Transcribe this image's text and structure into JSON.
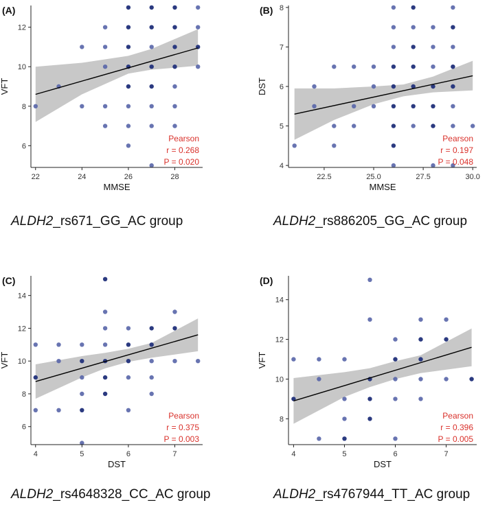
{
  "chart_data": [
    {
      "type": "scatter",
      "panel_label": "(A)",
      "xlabel": "MMSE",
      "ylabel": "VFT",
      "xlim": [
        21.8,
        29.2
      ],
      "ylim": [
        4.9,
        13.1
      ],
      "xticks": [
        22,
        24,
        26,
        28
      ],
      "yticks": [
        6,
        8,
        10,
        12
      ],
      "gene": "ALDH2",
      "group": "_rs671_GG_AC group",
      "stats": {
        "method": "Pearson",
        "r": "r = 0.268",
        "p": "P = 0.020"
      },
      "fit": {
        "x": [
          22,
          29
        ],
        "y": [
          8.6,
          10.95
        ]
      },
      "band": {
        "x": [
          22,
          24,
          26,
          27,
          28,
          29
        ],
        "lower": [
          7.2,
          8.6,
          9.65,
          9.85,
          9.95,
          10.05
        ],
        "upper": [
          10.0,
          10.2,
          10.55,
          10.9,
          11.4,
          11.9
        ]
      },
      "points": [
        [
          22,
          8
        ],
        [
          23,
          9
        ],
        [
          24,
          11
        ],
        [
          24,
          8
        ],
        [
          25,
          12
        ],
        [
          25,
          11
        ],
        [
          25,
          10
        ],
        [
          25,
          8
        ],
        [
          25,
          7
        ],
        [
          26,
          13
        ],
        [
          26,
          12
        ],
        [
          26,
          11
        ],
        [
          26,
          10
        ],
        [
          26,
          9
        ],
        [
          26,
          8
        ],
        [
          26,
          7
        ],
        [
          26,
          6
        ],
        [
          27,
          13
        ],
        [
          27,
          12
        ],
        [
          27,
          11
        ],
        [
          27,
          10
        ],
        [
          27,
          9
        ],
        [
          27,
          8
        ],
        [
          27,
          7
        ],
        [
          27,
          5
        ],
        [
          28,
          13
        ],
        [
          28,
          12
        ],
        [
          28,
          11
        ],
        [
          28,
          10
        ],
        [
          28,
          9
        ],
        [
          28,
          8
        ],
        [
          28,
          7
        ],
        [
          29,
          13
        ],
        [
          29,
          12
        ],
        [
          29,
          11
        ],
        [
          29,
          10
        ]
      ],
      "dark_points": [
        [
          26,
          13
        ],
        [
          26,
          12
        ],
        [
          26,
          11
        ],
        [
          26,
          10
        ],
        [
          26,
          9
        ],
        [
          27,
          13
        ],
        [
          27,
          12
        ],
        [
          27,
          10
        ],
        [
          27,
          9
        ],
        [
          28,
          13
        ],
        [
          28,
          12
        ],
        [
          28,
          11
        ],
        [
          29,
          11
        ],
        [
          28,
          10
        ]
      ]
    },
    {
      "type": "scatter",
      "panel_label": "(B)",
      "xlabel": "MMSE",
      "ylabel": "DST",
      "xlim": [
        20.7,
        30.2
      ],
      "ylim": [
        3.95,
        8.05
      ],
      "xticks": [
        22.5,
        25.0,
        27.5,
        30.0
      ],
      "xtick_labels": [
        "22.5",
        "25.0",
        "27.5",
        "30.0"
      ],
      "yticks": [
        4,
        5,
        6,
        7,
        8
      ],
      "gene": "ALDH2",
      "group": "_rs886205_GG_AC group",
      "stats": {
        "method": "Pearson",
        "r": "r = 0.197",
        "p": "P = 0.048"
      },
      "fit": {
        "x": [
          21,
          30
        ],
        "y": [
          5.3,
          6.27
        ]
      },
      "band": {
        "x": [
          21,
          23,
          25,
          26.5,
          28,
          30
        ],
        "lower": [
          4.65,
          5.15,
          5.55,
          5.75,
          5.85,
          5.9
        ],
        "upper": [
          5.95,
          5.95,
          6.0,
          6.05,
          6.25,
          6.65
        ]
      },
      "points": [
        [
          21,
          4.5
        ],
        [
          22,
          6
        ],
        [
          22,
          5.5
        ],
        [
          23,
          6.5
        ],
        [
          23,
          5
        ],
        [
          23,
          4.5
        ],
        [
          24,
          6.5
        ],
        [
          24,
          5.5
        ],
        [
          24,
          5
        ],
        [
          25,
          6.5
        ],
        [
          25,
          6
        ],
        [
          25,
          5.5
        ],
        [
          26,
          8
        ],
        [
          26,
          7.5
        ],
        [
          26,
          7
        ],
        [
          26,
          6.5
        ],
        [
          26,
          6
        ],
        [
          26,
          5.5
        ],
        [
          26,
          5
        ],
        [
          26,
          4.5
        ],
        [
          26,
          4
        ],
        [
          27,
          8
        ],
        [
          27,
          7.5
        ],
        [
          27,
          7
        ],
        [
          27,
          6.5
        ],
        [
          27,
          6
        ],
        [
          27,
          5.5
        ],
        [
          27,
          5
        ],
        [
          28,
          7.5
        ],
        [
          28,
          7
        ],
        [
          28,
          6.5
        ],
        [
          28,
          6
        ],
        [
          28,
          5.5
        ],
        [
          28,
          5
        ],
        [
          28,
          4
        ],
        [
          29,
          8
        ],
        [
          29,
          7.5
        ],
        [
          29,
          7
        ],
        [
          29,
          6.5
        ],
        [
          29,
          6
        ],
        [
          29,
          5.5
        ],
        [
          29,
          5
        ],
        [
          29,
          4
        ],
        [
          30,
          5
        ]
      ],
      "dark_points": [
        [
          26,
          6.5
        ],
        [
          26,
          6
        ],
        [
          26,
          5.5
        ],
        [
          26,
          5
        ],
        [
          27,
          8
        ],
        [
          27,
          7
        ],
        [
          27,
          6.5
        ],
        [
          27,
          6
        ],
        [
          27,
          5.5
        ],
        [
          28,
          6
        ],
        [
          28,
          5.5
        ],
        [
          28,
          5
        ],
        [
          29,
          7.5
        ],
        [
          29,
          6.5
        ],
        [
          29,
          6
        ],
        [
          26,
          4.5
        ]
      ]
    },
    {
      "type": "scatter",
      "panel_label": "(C)",
      "xlabel": "DST",
      "ylabel": "VFT",
      "xlim": [
        3.9,
        7.6
      ],
      "ylim": [
        4.9,
        15.2
      ],
      "xticks": [
        4,
        5,
        6,
        7
      ],
      "yticks": [
        6,
        8,
        10,
        12,
        14
      ],
      "gene": "ALDH2",
      "group": "_rs4648328_CC_AC group",
      "stats": {
        "method": "Pearson",
        "r": "r = 0.375",
        "p": "P = 0.003"
      },
      "fit": {
        "x": [
          4,
          7.5
        ],
        "y": [
          8.75,
          11.6
        ]
      },
      "band": {
        "x": [
          4,
          5,
          5.5,
          6,
          6.5,
          7.5
        ],
        "lower": [
          7.7,
          9.0,
          9.55,
          9.95,
          10.2,
          10.6
        ],
        "upper": [
          9.8,
          10.3,
          10.5,
          10.75,
          11.1,
          12.6
        ]
      },
      "points": [
        [
          4,
          11
        ],
        [
          4,
          9
        ],
        [
          4,
          7
        ],
        [
          4.5,
          11
        ],
        [
          4.5,
          10
        ],
        [
          4.5,
          7
        ],
        [
          5,
          11
        ],
        [
          5,
          10
        ],
        [
          5,
          9
        ],
        [
          5,
          8
        ],
        [
          5,
          7
        ],
        [
          5,
          5
        ],
        [
          5.5,
          15
        ],
        [
          5.5,
          13
        ],
        [
          5.5,
          12
        ],
        [
          5.5,
          11
        ],
        [
          5.5,
          10
        ],
        [
          5.5,
          9
        ],
        [
          5.5,
          8
        ],
        [
          6,
          12
        ],
        [
          6,
          11
        ],
        [
          6,
          10
        ],
        [
          6,
          9
        ],
        [
          6,
          7
        ],
        [
          6.5,
          12
        ],
        [
          6.5,
          11
        ],
        [
          6.5,
          10
        ],
        [
          6.5,
          9
        ],
        [
          6.5,
          8
        ],
        [
          7,
          13
        ],
        [
          7,
          12
        ],
        [
          7,
          10
        ],
        [
          7.5,
          10
        ]
      ],
      "dark_points": [
        [
          4,
          9
        ],
        [
          5,
          10
        ],
        [
          5.5,
          15
        ],
        [
          5.5,
          10
        ],
        [
          5.5,
          9
        ],
        [
          5.5,
          8
        ],
        [
          6,
          11
        ],
        [
          6,
          10
        ],
        [
          6.5,
          12
        ],
        [
          6.5,
          11
        ],
        [
          7,
          12
        ],
        [
          5,
          7
        ]
      ]
    },
    {
      "type": "scatter",
      "panel_label": "(D)",
      "xlabel": "DST",
      "ylabel": "VFT",
      "xlim": [
        3.9,
        7.6
      ],
      "ylim": [
        6.7,
        15.2
      ],
      "xticks": [
        4,
        5,
        6,
        7
      ],
      "yticks": [
        8,
        10,
        12,
        14
      ],
      "gene": "ALDH2",
      "group": "_rs4767944_TT_AC group",
      "stats": {
        "method": "Pearson",
        "r": "r = 0.396",
        "p": "P = 0.005"
      },
      "fit": {
        "x": [
          4,
          7.5
        ],
        "y": [
          8.9,
          11.6
        ]
      },
      "band": {
        "x": [
          4,
          5,
          5.5,
          6,
          6.5,
          7.5
        ],
        "lower": [
          7.75,
          9.1,
          9.6,
          10.0,
          10.3,
          10.65
        ],
        "upper": [
          10.05,
          10.35,
          10.55,
          10.9,
          11.2,
          12.55
        ]
      },
      "points": [
        [
          4,
          11
        ],
        [
          4,
          9
        ],
        [
          4.5,
          11
        ],
        [
          4.5,
          10
        ],
        [
          4.5,
          7
        ],
        [
          5,
          11
        ],
        [
          5,
          9
        ],
        [
          5,
          8
        ],
        [
          5,
          7
        ],
        [
          5.5,
          15
        ],
        [
          5.5,
          13
        ],
        [
          5.5,
          10
        ],
        [
          5.5,
          9
        ],
        [
          5.5,
          8
        ],
        [
          6,
          12
        ],
        [
          6,
          11
        ],
        [
          6,
          10
        ],
        [
          6,
          9
        ],
        [
          6,
          7
        ],
        [
          6.5,
          13
        ],
        [
          6.5,
          12
        ],
        [
          6.5,
          11
        ],
        [
          6.5,
          10
        ],
        [
          6.5,
          9
        ],
        [
          7,
          13
        ],
        [
          7,
          12
        ],
        [
          7,
          10
        ],
        [
          7.5,
          10
        ]
      ],
      "dark_points": [
        [
          4,
          9
        ],
        [
          5.5,
          10
        ],
        [
          5.5,
          9
        ],
        [
          5.5,
          8
        ],
        [
          6,
          11
        ],
        [
          6.5,
          12
        ],
        [
          6.5,
          11
        ],
        [
          7,
          12
        ],
        [
          7.5,
          10
        ],
        [
          5,
          7
        ]
      ]
    }
  ],
  "colors": {
    "point": "#5865a8",
    "point_dark": "#2b3a80",
    "band": "#c8c8c8",
    "fit": "#000000",
    "stats": "#d9302a",
    "axis": "#222222"
  }
}
